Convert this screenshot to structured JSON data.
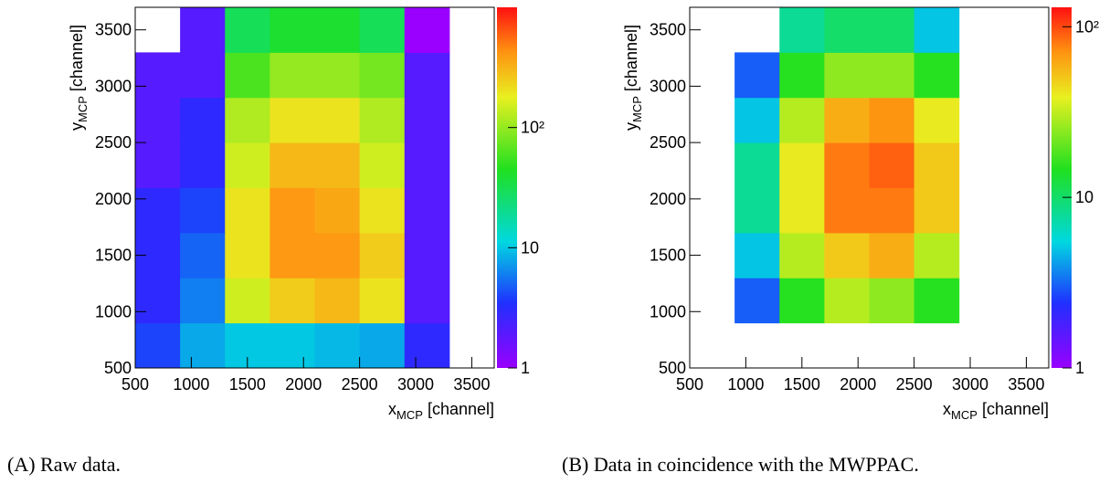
{
  "chart_data": [
    {
      "type": "heatmap",
      "x_label": [
        "x",
        "MCP",
        " [channel]"
      ],
      "y_label": [
        "y",
        "MCP",
        " [channel]"
      ],
      "xlim": [
        500,
        3700
      ],
      "ylim": [
        500,
        3700
      ],
      "xticks": [
        500,
        1000,
        1500,
        2000,
        2500,
        3000,
        3500
      ],
      "yticks": [
        500,
        1000,
        1500,
        2000,
        2500,
        3000,
        3500
      ],
      "x_bins": [
        500,
        900,
        1300,
        1700,
        2100,
        2500,
        2900,
        3300,
        3700
      ],
      "y_bins": [
        500,
        900,
        1300,
        1700,
        2100,
        2500,
        2900,
        3300,
        3700
      ],
      "z": [
        [
          4,
          8,
          10,
          10,
          9,
          8,
          3,
          null
        ],
        [
          3,
          6,
          150,
          250,
          300,
          200,
          2,
          null
        ],
        [
          3,
          5,
          200,
          400,
          400,
          250,
          2,
          null
        ],
        [
          3,
          4,
          200,
          400,
          350,
          200,
          2,
          null
        ],
        [
          2,
          3,
          150,
          300,
          300,
          150,
          2,
          null
        ],
        [
          2,
          3,
          120,
          200,
          200,
          120,
          2,
          null
        ],
        [
          2,
          2,
          60,
          100,
          100,
          80,
          2,
          null
        ],
        [
          null,
          2,
          30,
          40,
          40,
          30,
          1,
          null
        ]
      ],
      "zlim": [
        1,
        1000
      ],
      "z_log": true,
      "zticks": [
        1,
        10,
        {
          "value": 100,
          "label": "10²"
        }
      ],
      "caption": "(A) Raw data."
    },
    {
      "type": "heatmap",
      "x_label": [
        "x",
        "MCP",
        " [channel]"
      ],
      "y_label": [
        "y",
        "MCP",
        " [channel]"
      ],
      "xlim": [
        500,
        3700
      ],
      "ylim": [
        500,
        3700
      ],
      "xticks": [
        500,
        1000,
        1500,
        2000,
        2500,
        3000,
        3500
      ],
      "yticks": [
        500,
        1000,
        1500,
        2000,
        2500,
        3000,
        3500
      ],
      "x_bins": [
        500,
        900,
        1300,
        1700,
        2100,
        2500,
        2900,
        3300,
        3700
      ],
      "y_bins": [
        500,
        900,
        1300,
        1700,
        2100,
        2500,
        2900,
        3300,
        3700
      ],
      "z": [
        [
          null,
          null,
          null,
          null,
          null,
          null,
          null,
          null
        ],
        [
          null,
          3,
          15,
          30,
          25,
          15,
          null,
          null
        ],
        [
          null,
          5,
          30,
          50,
          60,
          30,
          null,
          null
        ],
        [
          null,
          8,
          40,
          80,
          80,
          50,
          null,
          null
        ],
        [
          null,
          8,
          40,
          80,
          90,
          50,
          null,
          null
        ],
        [
          null,
          5,
          30,
          60,
          70,
          40,
          null,
          null
        ],
        [
          null,
          3,
          15,
          25,
          25,
          15,
          null,
          null
        ],
        [
          null,
          null,
          8,
          10,
          10,
          5,
          null,
          null
        ]
      ],
      "zlim": [
        1,
        130
      ],
      "z_log": true,
      "zticks": [
        1,
        10,
        {
          "value": 100,
          "label": "10²"
        }
      ],
      "caption": "(B) Data in coincidence with the MWPPAC."
    }
  ]
}
